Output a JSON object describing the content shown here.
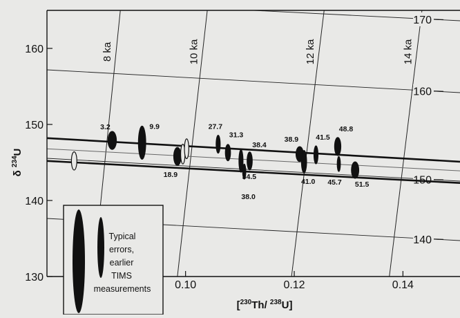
{
  "chart_data": {
    "type": "scatter",
    "x_axis": {
      "label": "[230Th/238U]",
      "tick_labels": [
        "0.10",
        "0.12",
        "0.14"
      ],
      "ticks": [
        0.1,
        0.12,
        0.14
      ],
      "range": [
        0.0745,
        0.1505
      ]
    },
    "y_axis": {
      "label": "δ 234U",
      "tick_labels": [
        "130",
        "140",
        "150",
        "160"
      ],
      "ticks": [
        130,
        140,
        150,
        160
      ],
      "range": [
        130,
        165
      ]
    },
    "initial_delta234U_axis": {
      "tick_labels": [
        "140",
        "150",
        "160",
        "170"
      ],
      "ticks": [
        140,
        150,
        160,
        170
      ]
    },
    "isochrons": [
      {
        "label": "8 ka",
        "x_bottom": 0.083,
        "x_top": 0.088
      },
      {
        "label": "10 ka",
        "x_bottom": 0.0985,
        "x_top": 0.104
      },
      {
        "label": "12 ka",
        "x_bottom": 0.1195,
        "x_top": 0.1255
      },
      {
        "label": "14 ka",
        "x_bottom": 0.1375,
        "x_top": 0.1435
      }
    ],
    "trend_lines": [
      {
        "from": [
          0.0745,
          148.2
        ],
        "to": [
          0.1505,
          145.1
        ]
      },
      {
        "from": [
          0.0745,
          145.2
        ],
        "to": [
          0.1505,
          142.3
        ]
      }
    ],
    "points": [
      {
        "x": 0.0795,
        "y": 145.2,
        "ex": 0.0005,
        "ey": 1.2,
        "filled": false,
        "label": ""
      },
      {
        "x": 0.0865,
        "y": 147.9,
        "ex": 0.0008,
        "ey": 1.2,
        "filled": true,
        "label": "3.2"
      },
      {
        "x": 0.092,
        "y": 147.6,
        "ex": 0.0007,
        "ey": 2.2,
        "filled": true,
        "label": "9.9"
      },
      {
        "x": 0.0985,
        "y": 145.8,
        "ex": 0.0007,
        "ey": 1.2,
        "filled": true,
        "label": "18.9"
      },
      {
        "x": 0.0995,
        "y": 146.1,
        "ex": 0.0004,
        "ey": 1.3,
        "filled": false,
        "label": ""
      },
      {
        "x": 0.1002,
        "y": 146.8,
        "ex": 0.0004,
        "ey": 1.3,
        "filled": false,
        "label": ""
      },
      {
        "x": 0.106,
        "y": 147.4,
        "ex": 0.0004,
        "ey": 1.2,
        "filled": true,
        "label": "27.7"
      },
      {
        "x": 0.1078,
        "y": 146.3,
        "ex": 0.0005,
        "ey": 1.1,
        "filled": true,
        "label": "31.3"
      },
      {
        "x": 0.1102,
        "y": 145.2,
        "ex": 0.0004,
        "ey": 1.5,
        "filled": true,
        "label": "34.5"
      },
      {
        "x": 0.1108,
        "y": 143.8,
        "ex": 0.0003,
        "ey": 1.0,
        "filled": true,
        "label": "38.0"
      },
      {
        "x": 0.1118,
        "y": 145.2,
        "ex": 0.0005,
        "ey": 1.2,
        "filled": true,
        "label": "38.4"
      },
      {
        "x": 0.121,
        "y": 146.1,
        "ex": 0.0007,
        "ey": 1.0,
        "filled": true,
        "label": "38.9"
      },
      {
        "x": 0.1218,
        "y": 145.1,
        "ex": 0.0005,
        "ey": 1.5,
        "filled": true,
        "label": "41.0"
      },
      {
        "x": 0.124,
        "y": 146.0,
        "ex": 0.0004,
        "ey": 1.2,
        "filled": true,
        "label": "41.5"
      },
      {
        "x": 0.128,
        "y": 147.1,
        "ex": 0.0006,
        "ey": 1.2,
        "filled": true,
        "label": "48.8"
      },
      {
        "x": 0.1282,
        "y": 144.8,
        "ex": 0.0003,
        "ey": 1.0,
        "filled": true,
        "label": "45.7"
      },
      {
        "x": 0.1312,
        "y": 144.0,
        "ex": 0.0007,
        "ey": 1.1,
        "filled": true,
        "label": "51.5"
      }
    ],
    "legend": {
      "text_lines": [
        "Typical",
        "errors,",
        "earlier",
        "TIMS",
        "measurements"
      ],
      "placement": "bottom-left"
    }
  }
}
